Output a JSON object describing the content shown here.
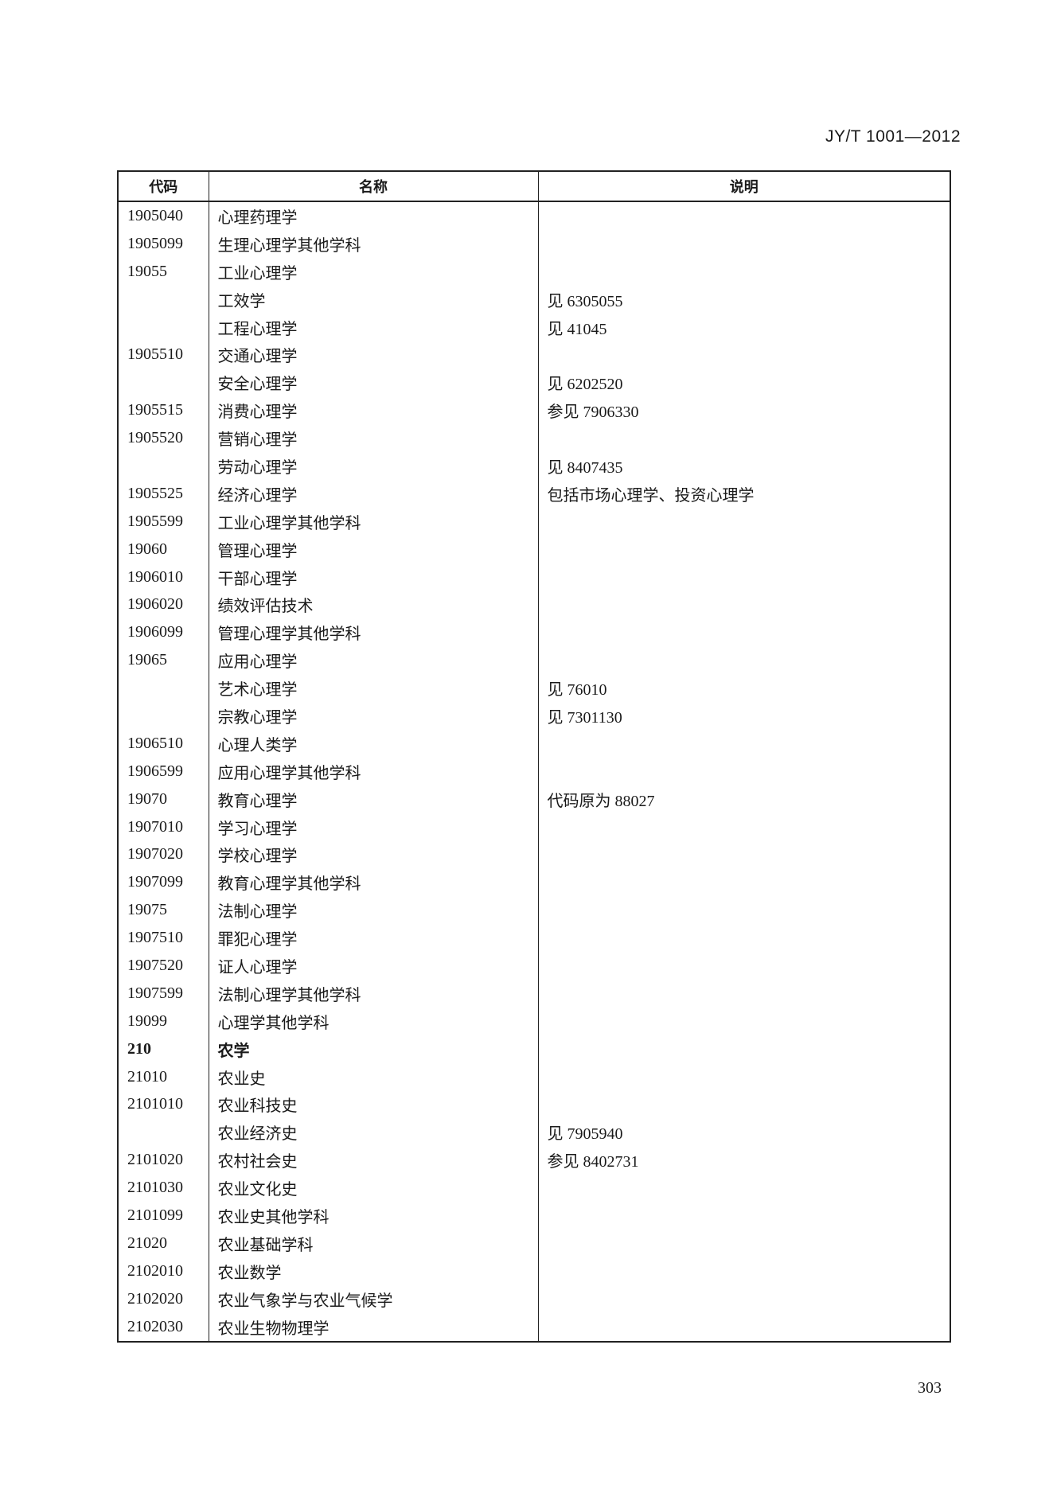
{
  "header": {
    "doc_id": "JY/T 1001—2012"
  },
  "table": {
    "columns": [
      "代码",
      "名称",
      "说明"
    ],
    "rows": [
      {
        "code": "1905040",
        "name": "心理药理学",
        "note": ""
      },
      {
        "code": "1905099",
        "name": "生理心理学其他学科",
        "note": ""
      },
      {
        "code": "19055",
        "name": "工业心理学",
        "note": ""
      },
      {
        "code": "",
        "name": "工效学",
        "note": "见 6305055"
      },
      {
        "code": "",
        "name": "工程心理学",
        "note": "见 41045"
      },
      {
        "code": "1905510",
        "name": "交通心理学",
        "note": ""
      },
      {
        "code": "",
        "name": "安全心理学",
        "note": "见 6202520"
      },
      {
        "code": "1905515",
        "name": "消费心理学",
        "note": "参见 7906330"
      },
      {
        "code": "1905520",
        "name": "营销心理学",
        "note": ""
      },
      {
        "code": "",
        "name": "劳动心理学",
        "note": "见 8407435"
      },
      {
        "code": "1905525",
        "name": "经济心理学",
        "note": "包括市场心理学、投资心理学"
      },
      {
        "code": "1905599",
        "name": "工业心理学其他学科",
        "note": ""
      },
      {
        "code": "19060",
        "name": "管理心理学",
        "note": ""
      },
      {
        "code": "1906010",
        "name": "干部心理学",
        "note": ""
      },
      {
        "code": "1906020",
        "name": "绩效评估技术",
        "note": ""
      },
      {
        "code": "1906099",
        "name": "管理心理学其他学科",
        "note": ""
      },
      {
        "code": "19065",
        "name": "应用心理学",
        "note": ""
      },
      {
        "code": "",
        "name": "艺术心理学",
        "note": "见 76010"
      },
      {
        "code": "",
        "name": "宗教心理学",
        "note": "见 7301130"
      },
      {
        "code": "1906510",
        "name": "心理人类学",
        "note": ""
      },
      {
        "code": "1906599",
        "name": "应用心理学其他学科",
        "note": ""
      },
      {
        "code": "19070",
        "name": "教育心理学",
        "note": "代码原为 88027"
      },
      {
        "code": "1907010",
        "name": "学习心理学",
        "note": ""
      },
      {
        "code": "1907020",
        "name": "学校心理学",
        "note": ""
      },
      {
        "code": "1907099",
        "name": "教育心理学其他学科",
        "note": ""
      },
      {
        "code": "19075",
        "name": "法制心理学",
        "note": ""
      },
      {
        "code": "1907510",
        "name": "罪犯心理学",
        "note": ""
      },
      {
        "code": "1907520",
        "name": "证人心理学",
        "note": ""
      },
      {
        "code": "1907599",
        "name": "法制心理学其他学科",
        "note": ""
      },
      {
        "code": "19099",
        "name": "心理学其他学科",
        "note": ""
      },
      {
        "code": "210",
        "name": "农学",
        "note": "",
        "bold": true
      },
      {
        "code": "21010",
        "name": "农业史",
        "note": ""
      },
      {
        "code": "2101010",
        "name": "农业科技史",
        "note": ""
      },
      {
        "code": "",
        "name": "农业经济史",
        "note": "见 7905940"
      },
      {
        "code": "2101020",
        "name": "农村社会史",
        "note": "参见 8402731"
      },
      {
        "code": "2101030",
        "name": "农业文化史",
        "note": ""
      },
      {
        "code": "2101099",
        "name": "农业史其他学科",
        "note": ""
      },
      {
        "code": "21020",
        "name": "农业基础学科",
        "note": ""
      },
      {
        "code": "2102010",
        "name": "农业数学",
        "note": ""
      },
      {
        "code": "2102020",
        "name": "农业气象学与农业气候学",
        "note": ""
      },
      {
        "code": "2102030",
        "name": "农业生物物理学",
        "note": ""
      }
    ]
  },
  "footer": {
    "page_number": "303"
  }
}
